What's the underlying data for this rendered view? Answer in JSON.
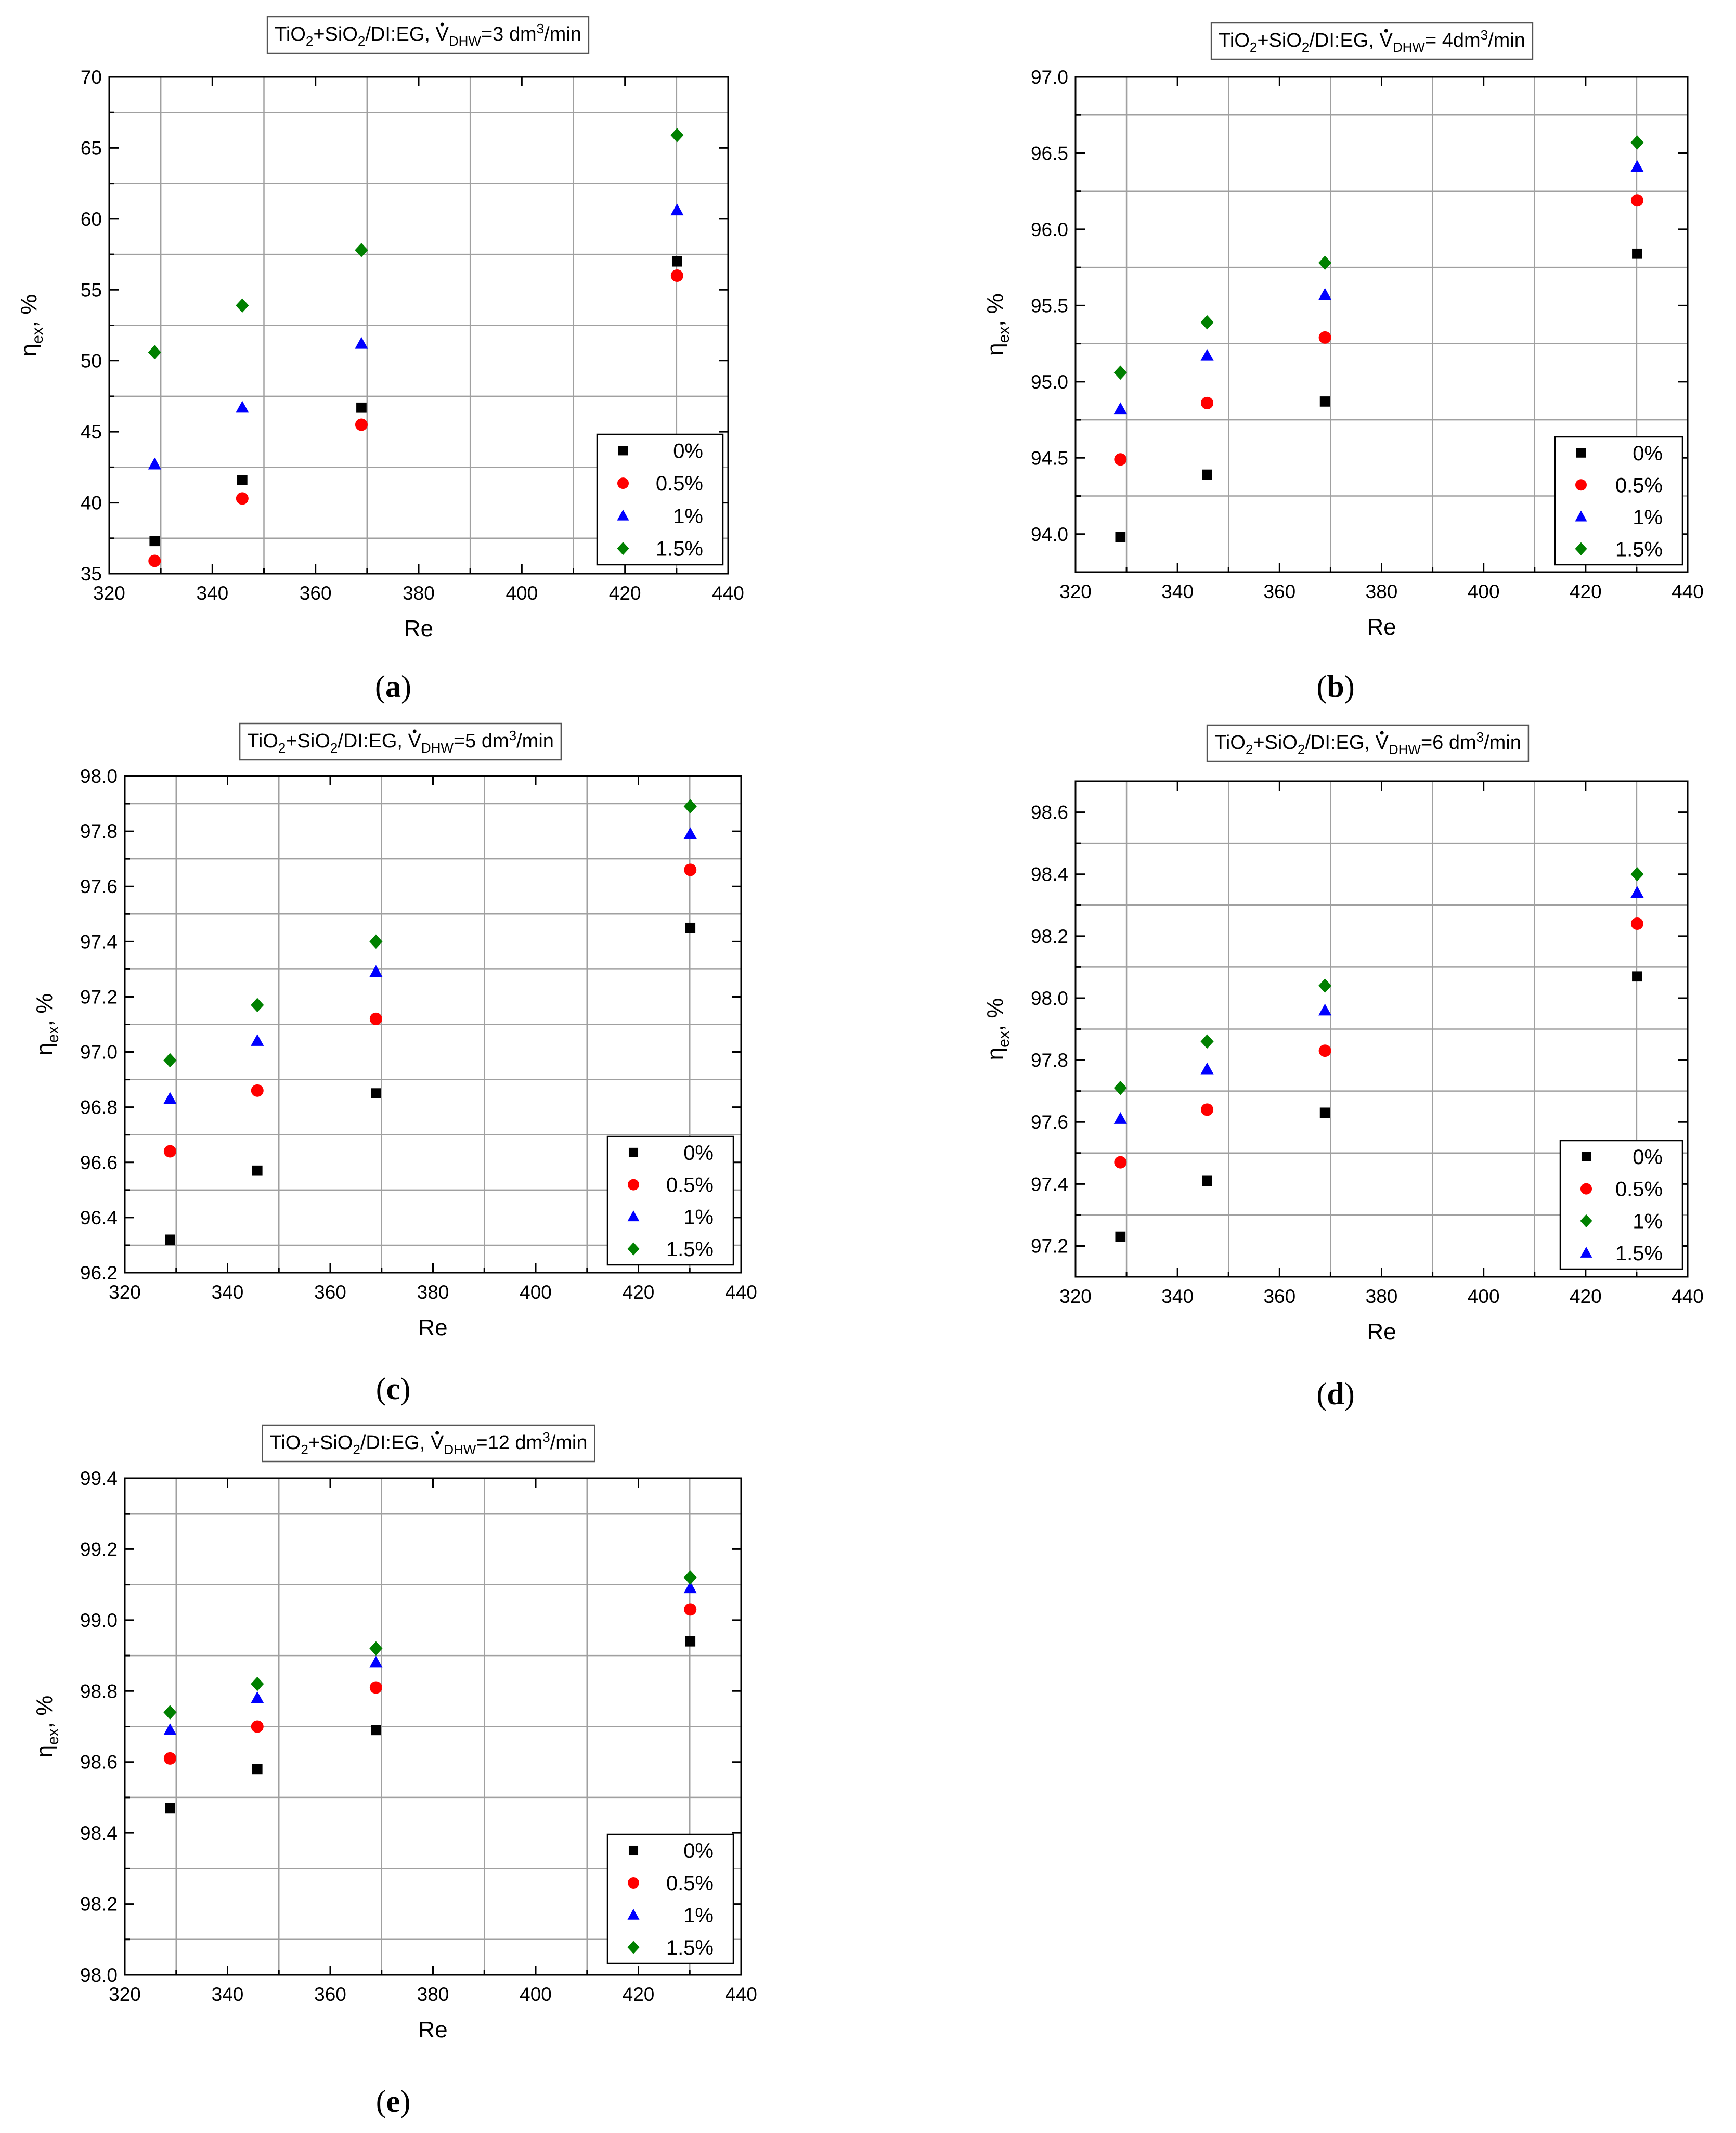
{
  "colors": {
    "s0": "#000000",
    "s1": "#ff0000",
    "s2": "#0000ff",
    "s3": "#008000",
    "grid": "#a0a0a0"
  },
  "chart_data": [
    {
      "type": "scatter",
      "panel_label": "a",
      "title": {
        "base": "TiO",
        "sub1": "2",
        "mid1": "+SiO",
        "sub2": "2",
        "mid2": "/DI:EG, ",
        "v": "V",
        "vsub": "DHW",
        "rest": "=3 dm",
        "sup": "3",
        "end": "/min"
      },
      "xlabel": "Re",
      "ylabel": {
        "base": "η",
        "sub": "ex",
        "tail": ", %"
      },
      "xlim": [
        320,
        440
      ],
      "ylim": [
        35,
        70
      ],
      "xticks": [
        320,
        340,
        360,
        380,
        400,
        420,
        440
      ],
      "xtick_labels": [
        "320",
        "340",
        "360",
        "380",
        "400",
        "420",
        "440"
      ],
      "yticks": [
        35,
        40,
        45,
        50,
        55,
        60,
        65,
        70
      ],
      "ytick_labels": [
        "35",
        "40",
        "45",
        "50",
        "55",
        "60",
        "65",
        "70"
      ],
      "x": [
        328.8,
        345.8,
        368.9,
        430.1
      ],
      "series": [
        {
          "name": "0%",
          "marker": "square",
          "color": "#000000",
          "values": [
            37.3,
            41.6,
            46.7,
            57.0
          ]
        },
        {
          "name": "0.5%",
          "marker": "circle",
          "color": "#ff0000",
          "values": [
            35.9,
            40.3,
            45.5,
            56.0
          ]
        },
        {
          "name": "1%",
          "marker": "triangle",
          "color": "#0000ff",
          "values": [
            42.7,
            46.7,
            51.2,
            60.6
          ]
        },
        {
          "name": "1.5%",
          "marker": "diamond",
          "color": "#008000",
          "values": [
            50.6,
            53.9,
            57.8,
            65.9
          ]
        }
      ]
    },
    {
      "type": "scatter",
      "panel_label": "b",
      "title": {
        "base": "TiO",
        "sub1": "2",
        "mid1": "+SiO",
        "sub2": "2",
        "mid2": "/DI:EG, ",
        "v": "V",
        "vsub": "DHW",
        "rest": "= 4dm",
        "sup": "3",
        "end": "/min"
      },
      "xlabel": "Re",
      "ylabel": {
        "base": "η",
        "sub": "ex",
        "tail": ", %"
      },
      "xlim": [
        320,
        440
      ],
      "ylim": [
        93.75,
        97.0
      ],
      "xticks": [
        320,
        340,
        360,
        380,
        400,
        420,
        440
      ],
      "xtick_labels": [
        "320",
        "340",
        "360",
        "380",
        "400",
        "420",
        "440"
      ],
      "yticks": [
        94.0,
        94.5,
        95.0,
        95.5,
        96.0,
        96.5,
        97.0
      ],
      "ytick_labels": [
        "94.0",
        "94.5",
        "95.0",
        "95.5",
        "96.0",
        "96.5",
        "97.0"
      ],
      "x": [
        328.8,
        345.8,
        368.9,
        430.1
      ],
      "series": [
        {
          "name": "0%",
          "marker": "square",
          "color": "#000000",
          "values": [
            93.98,
            94.39,
            94.87,
            95.84
          ]
        },
        {
          "name": "0.5%",
          "marker": "circle",
          "color": "#ff0000",
          "values": [
            94.49,
            94.86,
            95.29,
            96.19
          ]
        },
        {
          "name": "1%",
          "marker": "triangle",
          "color": "#0000ff",
          "values": [
            94.82,
            95.17,
            95.57,
            96.41
          ]
        },
        {
          "name": "1.5%",
          "marker": "diamond",
          "color": "#008000",
          "values": [
            95.06,
            95.39,
            95.78,
            96.57
          ]
        }
      ]
    },
    {
      "type": "scatter",
      "panel_label": "c",
      "title": {
        "base": "TiO",
        "sub1": "2",
        "mid1": "+SiO",
        "sub2": "2",
        "mid2": "/DI:EG, ",
        "v": "V",
        "vsub": "DHW",
        "rest": "=5 dm",
        "sup": "3",
        "end": "/min"
      },
      "xlabel": "Re",
      "ylabel": {
        "base": "η",
        "sub": "ex",
        "tail": ", %"
      },
      "xlim": [
        320,
        440
      ],
      "ylim": [
        96.2,
        98.0
      ],
      "xticks": [
        320,
        340,
        360,
        380,
        400,
        420,
        440
      ],
      "xtick_labels": [
        "320",
        "340",
        "360",
        "380",
        "400",
        "420",
        "440"
      ],
      "yticks": [
        96.2,
        96.4,
        96.6,
        96.8,
        97.0,
        97.2,
        97.4,
        97.6,
        97.8,
        98.0
      ],
      "ytick_labels": [
        "96.2",
        "96.4",
        "96.6",
        "96.8",
        "97.0",
        "97.2",
        "97.4",
        "97.6",
        "97.8",
        "98.0"
      ],
      "x": [
        328.8,
        345.8,
        368.9,
        430.1
      ],
      "series": [
        {
          "name": "0%",
          "marker": "square",
          "color": "#000000",
          "values": [
            96.32,
            96.57,
            96.85,
            97.45
          ]
        },
        {
          "name": "0.5%",
          "marker": "circle",
          "color": "#ff0000",
          "values": [
            96.64,
            96.86,
            97.12,
            97.66
          ]
        },
        {
          "name": "1%",
          "marker": "triangle",
          "color": "#0000ff",
          "values": [
            96.83,
            97.04,
            97.29,
            97.79
          ]
        },
        {
          "name": "1.5%",
          "marker": "diamond",
          "color": "#008000",
          "values": [
            96.97,
            97.17,
            97.4,
            97.89
          ]
        }
      ]
    },
    {
      "type": "scatter",
      "panel_label": "d",
      "title": {
        "base": "TiO",
        "sub1": "2",
        "mid1": "+SiO",
        "sub2": "2",
        "mid2": "/DI:EG, ",
        "v": "V",
        "vsub": "DHW",
        "rest": "=6 dm",
        "sup": "3",
        "end": "/min"
      },
      "xlabel": "Re",
      "ylabel": {
        "base": "η",
        "sub": "ex",
        "tail": ", %"
      },
      "xlim": [
        320,
        440
      ],
      "ylim": [
        97.1,
        98.7
      ],
      "xticks": [
        320,
        340,
        360,
        380,
        400,
        420,
        440
      ],
      "xtick_labels": [
        "320",
        "340",
        "360",
        "380",
        "400",
        "420",
        "440"
      ],
      "yticks": [
        97.2,
        97.4,
        97.6,
        97.8,
        98.0,
        98.2,
        98.4,
        98.6
      ],
      "ytick_labels": [
        "97.2",
        "97.4",
        "97.6",
        "97.8",
        "98.0",
        "98.2",
        "98.4",
        "98.6"
      ],
      "x": [
        328.8,
        345.8,
        368.9,
        430.1
      ],
      "series": [
        {
          "name": "0%",
          "marker": "square",
          "color": "#000000",
          "values": [
            97.23,
            97.41,
            97.63,
            98.07
          ]
        },
        {
          "name": "0.5%",
          "marker": "circle",
          "color": "#ff0000",
          "values": [
            97.47,
            97.64,
            97.83,
            98.24
          ]
        },
        {
          "name": "1%",
          "marker": "diamond",
          "color": "#008000",
          "values": [
            97.71,
            97.86,
            98.04,
            98.4
          ]
        },
        {
          "name": "1.5%",
          "marker": "triangle",
          "color": "#0000ff",
          "values": [
            97.61,
            97.77,
            97.96,
            98.34
          ]
        }
      ]
    },
    {
      "type": "scatter",
      "panel_label": "e",
      "title": {
        "base": "TiO",
        "sub1": "2",
        "mid1": "+SiO",
        "sub2": "2",
        "mid2": "/DI:EG, ",
        "v": "V",
        "vsub": "DHW",
        "rest": "=12 dm",
        "sup": "3",
        "end": "/min"
      },
      "xlabel": "Re",
      "ylabel": {
        "base": "η",
        "sub": "ex",
        "tail": ", %"
      },
      "xlim": [
        320,
        440
      ],
      "ylim": [
        98.0,
        99.4
      ],
      "xticks": [
        320,
        340,
        360,
        380,
        400,
        420,
        440
      ],
      "xtick_labels": [
        "320",
        "340",
        "360",
        "380",
        "400",
        "420",
        "440"
      ],
      "yticks": [
        98.0,
        98.2,
        98.4,
        98.6,
        98.8,
        99.0,
        99.2,
        99.4
      ],
      "ytick_labels": [
        "98.0",
        "98.2",
        "98.4",
        "98.6",
        "98.8",
        "99.0",
        "99.2",
        "99.4"
      ],
      "x": [
        328.8,
        345.8,
        368.9,
        430.1
      ],
      "series": [
        {
          "name": "0%",
          "marker": "square",
          "color": "#000000",
          "values": [
            98.47,
            98.58,
            98.69,
            98.94
          ]
        },
        {
          "name": "0.5%",
          "marker": "circle",
          "color": "#ff0000",
          "values": [
            98.61,
            98.7,
            98.81,
            99.03
          ]
        },
        {
          "name": "1%",
          "marker": "triangle",
          "color": "#0000ff",
          "values": [
            98.69,
            98.78,
            98.88,
            99.09
          ]
        },
        {
          "name": "1.5%",
          "marker": "diamond",
          "color": "#008000",
          "values": [
            98.74,
            98.82,
            98.92,
            99.12
          ]
        }
      ]
    }
  ]
}
